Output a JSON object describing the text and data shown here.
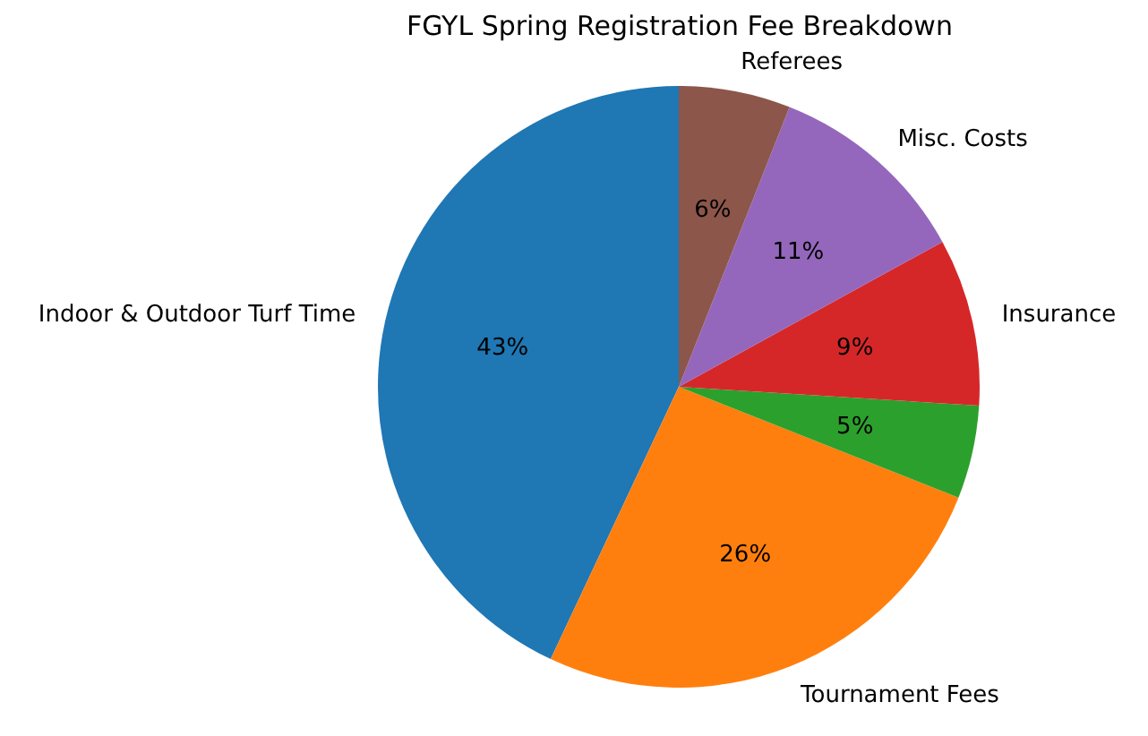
{
  "chart_data": {
    "type": "pie",
    "title": "FGYL Spring Registration Fee Breakdown",
    "categories": [
      "Indoor & Outdoor Turf Time",
      "Tournament Fees",
      null,
      "Insurance",
      "Misc. Costs",
      "Referees"
    ],
    "values": [
      43,
      26,
      5,
      9,
      11,
      6
    ],
    "colors": [
      "#1f77b4",
      "#ff7f0e",
      "#2ca02c",
      "#d62728",
      "#9467bd",
      "#8c564b"
    ],
    "value_labels": [
      "43%",
      "26%",
      "5%",
      "9%",
      "11%",
      "6%"
    ]
  }
}
